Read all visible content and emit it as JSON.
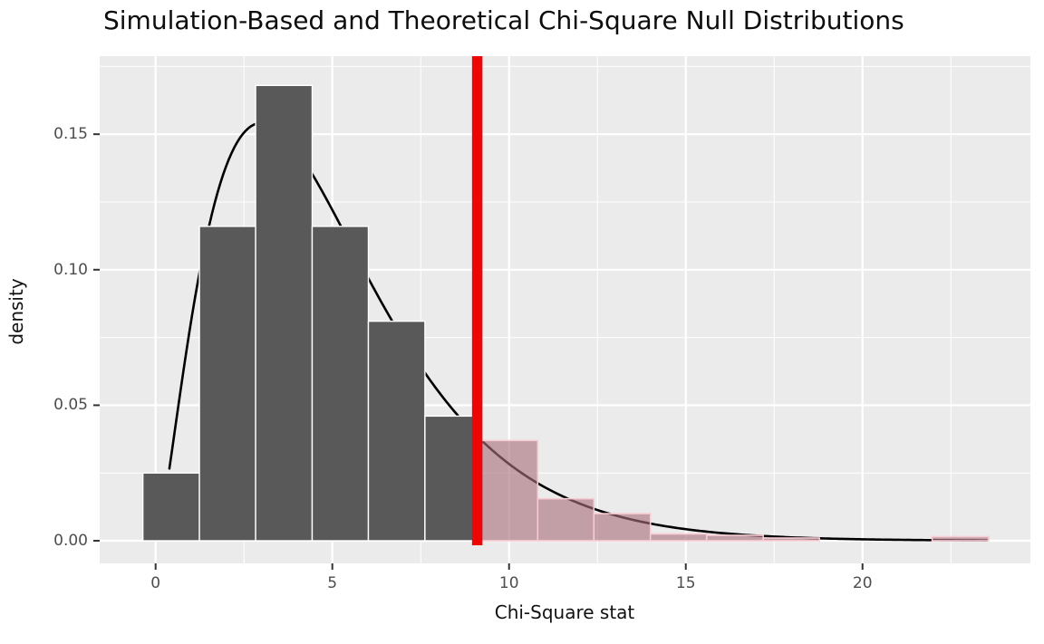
{
  "chart_data": {
    "type": "bar",
    "subtype": "histogram-with-density-curve",
    "title": "Simulation-Based and Theoretical Chi-Square Null Distributions",
    "xlabel": "Chi-Square stat",
    "ylabel": "density",
    "x_ticks": {
      "values": [
        0,
        5,
        10,
        15,
        20
      ],
      "labels": [
        "0",
        "5",
        "10",
        "15",
        "20"
      ]
    },
    "x_minor_ticks": [
      2.5,
      7.5,
      12.5,
      17.5,
      22.5
    ],
    "y_ticks": {
      "values": [
        0,
        0.05,
        0.1,
        0.15
      ],
      "labels": [
        "0.00",
        "0.05",
        "0.10",
        "0.15"
      ]
    },
    "y_minor_ticks": [
      0.025,
      0.075,
      0.125,
      0.175
    ],
    "xlim": [
      -1.582,
      24.75
    ],
    "ylim": [
      -0.00835,
      0.1788
    ],
    "grid": "on",
    "legend": "none",
    "bins": [
      {
        "start": -0.36,
        "end": 1.24,
        "density": 0.025,
        "shaded": false
      },
      {
        "start": 1.24,
        "end": 2.83,
        "density": 0.116,
        "shaded": false
      },
      {
        "start": 2.83,
        "end": 4.43,
        "density": 0.168,
        "shaded": false
      },
      {
        "start": 4.43,
        "end": 6.02,
        "density": 0.116,
        "shaded": false
      },
      {
        "start": 6.02,
        "end": 7.62,
        "density": 0.081,
        "shaded": false
      },
      {
        "start": 7.62,
        "end": 9.21,
        "density": 0.046,
        "shaded": false
      },
      {
        "start": 9.21,
        "end": 10.81,
        "density": 0.037,
        "shaded": true
      },
      {
        "start": 10.81,
        "end": 12.4,
        "density": 0.0155,
        "shaded": true
      },
      {
        "start": 12.4,
        "end": 14.0,
        "density": 0.01,
        "shaded": true
      },
      {
        "start": 14.0,
        "end": 15.59,
        "density": 0.0025,
        "shaded": true
      },
      {
        "start": 15.59,
        "end": 17.19,
        "density": 0.002,
        "shaded": true
      },
      {
        "start": 17.19,
        "end": 18.78,
        "density": 0.001,
        "shaded": true
      },
      {
        "start": 21.97,
        "end": 23.57,
        "density": 0.0015,
        "shaded": true
      }
    ],
    "observed_stat": 9.1,
    "shaded_region": "greater-than-observed-stat (p-value region)",
    "theoretical_curve": {
      "distribution": "chi-square",
      "df": 5,
      "x_min": 0.39,
      "x_max": 23.57
    },
    "colors": {
      "panel_bg": "#ebebeb",
      "grid": "#ffffff",
      "bar_fill": "#595959",
      "bar_stroke": "#ffffff",
      "shaded_fill": "#a9707c",
      "shaded_fill_opacity": 0.62,
      "shaded_stroke": "#f8ccd4",
      "curve": "#000000",
      "obs_line": "#ee0505",
      "tick_mark": "#333333",
      "axis_text": "#4d4d4d",
      "title_text": "#0d0d0d"
    }
  }
}
